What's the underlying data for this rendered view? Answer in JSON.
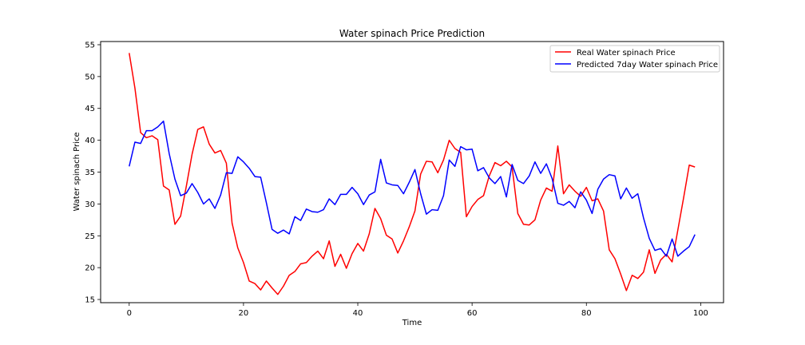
{
  "chart_data": {
    "type": "line",
    "title": "Water spinach Price Prediction",
    "xlabel": "Time",
    "ylabel": "Water spinach Price",
    "xlim": [
      -5,
      104
    ],
    "ylim": [
      14.5,
      55.5
    ],
    "xticks": [
      0,
      20,
      40,
      60,
      80,
      100
    ],
    "yticks": [
      15,
      20,
      25,
      30,
      35,
      40,
      45,
      50,
      55
    ],
    "grid": false,
    "legend": "top-right",
    "series": [
      {
        "name": "Real Water spinach Price",
        "color": "#ff0000",
        "values": [
          53.7,
          48.2,
          41.2,
          40.4,
          40.7,
          40.1,
          32.8,
          32.2,
          26.8,
          28.1,
          32.8,
          37.8,
          41.7,
          42.1,
          39.4,
          38.0,
          38.4,
          36.4,
          27.0,
          23.1,
          20.8,
          17.9,
          17.5,
          16.5,
          17.9,
          16.8,
          15.8,
          17.1,
          18.8,
          19.4,
          20.6,
          20.8,
          21.8,
          22.6,
          21.4,
          24.2,
          20.2,
          22.1,
          19.9,
          22.2,
          23.8,
          22.6,
          25.3,
          29.3,
          27.7,
          25.1,
          24.5,
          22.3,
          24.2,
          26.4,
          28.9,
          34.7,
          36.7,
          36.6,
          34.9,
          36.9,
          40.0,
          38.7,
          38.1,
          28.0,
          29.6,
          30.7,
          31.3,
          34.4,
          36.5,
          36.0,
          36.7,
          35.8,
          28.5,
          26.8,
          26.7,
          27.5,
          30.6,
          32.5,
          32.0,
          39.1,
          31.6,
          33.0,
          32.0,
          31.2,
          32.6,
          30.5,
          30.8,
          28.9,
          22.8,
          21.4,
          19.0,
          16.4,
          18.8,
          18.3,
          19.3,
          22.8,
          19.1,
          21.2,
          22.1,
          20.9,
          25.9,
          30.9,
          36.1,
          35.8
        ]
      },
      {
        "name": "Predicted 7day Water spinach Price",
        "color": "#0000ff",
        "values": [
          35.9,
          39.7,
          39.5,
          41.5,
          41.5,
          42.1,
          43.0,
          37.9,
          33.9,
          31.3,
          31.7,
          33.2,
          31.8,
          30.0,
          30.8,
          29.3,
          31.4,
          34.9,
          34.8,
          37.4,
          36.6,
          35.6,
          34.3,
          34.2,
          30.2,
          26.0,
          25.4,
          25.9,
          25.3,
          28.0,
          27.4,
          29.2,
          28.8,
          28.7,
          29.1,
          30.8,
          29.9,
          31.5,
          31.5,
          32.6,
          31.6,
          29.9,
          31.4,
          31.9,
          37.0,
          33.3,
          33.0,
          32.9,
          31.6,
          33.4,
          35.4,
          31.6,
          28.4,
          29.1,
          29.0,
          31.3,
          36.9,
          35.9,
          39.0,
          38.5,
          38.6,
          35.2,
          35.7,
          34.1,
          33.2,
          34.3,
          31.1,
          36.2,
          33.7,
          33.2,
          34.4,
          36.6,
          34.8,
          36.3,
          34.0,
          30.1,
          29.8,
          30.4,
          29.4,
          31.9,
          30.6,
          28.5,
          32.3,
          33.9,
          34.6,
          34.4,
          30.8,
          32.5,
          30.9,
          31.6,
          27.8,
          24.6,
          22.7,
          23.0,
          21.8,
          24.5,
          21.8,
          22.6,
          23.3,
          25.2
        ]
      }
    ]
  }
}
